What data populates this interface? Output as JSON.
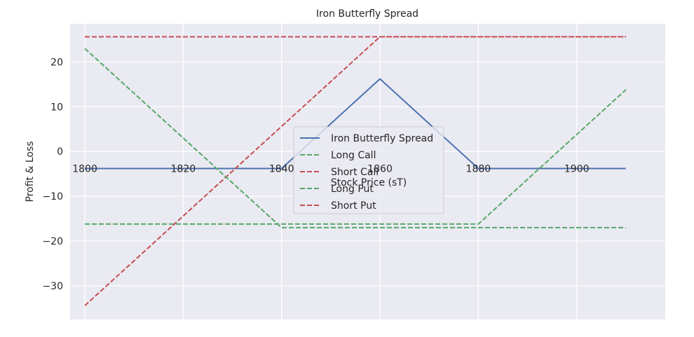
{
  "chart_data": {
    "type": "line",
    "title": "Iron Butterfly Spread",
    "xlabel": "Stock Price (sT)",
    "ylabel": "Profit & Loss",
    "xlim": [
      1797,
      1918
    ],
    "ylim": [
      -37.5,
      28.5
    ],
    "xticks": [
      1800,
      1820,
      1840,
      1860,
      1880,
      1900
    ],
    "xtick_labels": [
      "1800",
      "1820",
      "1840",
      "1860",
      "1880",
      "1900"
    ],
    "yticks": [
      -30,
      -20,
      -10,
      0,
      10,
      20
    ],
    "ytick_labels": [
      "−30",
      "−20",
      "−10",
      "0",
      "10",
      "20"
    ],
    "grid": true,
    "legend_position": "center",
    "background": "#eaeaf2",
    "series": [
      {
        "name": "Iron Butterfly Spread",
        "color": "#4c72b0",
        "dash": "solid",
        "x": [
          1800,
          1840,
          1860,
          1880,
          1910
        ],
        "y": [
          -3.8,
          -3.8,
          16.2,
          -3.8,
          -3.8
        ]
      },
      {
        "name": "Long Call",
        "color": "#55a868",
        "dash": "dashed",
        "x": [
          1800,
          1880,
          1910
        ],
        "y": [
          -16.2,
          -16.2,
          13.8
        ]
      },
      {
        "name": "Short Call",
        "color": "#c44e52",
        "dash": "dashed",
        "x": [
          1800,
          1860,
          1910
        ],
        "y": [
          -34.4,
          25.6,
          25.6
        ]
      },
      {
        "name": "Long Put",
        "color": "#55a868",
        "dash": "dashed",
        "x": [
          1800,
          1840,
          1910
        ],
        "y": [
          23.0,
          -17.0,
          -17.0
        ]
      },
      {
        "name": "Short Put",
        "color": "#c44e52",
        "dash": "dashed",
        "x": [
          1800,
          1860,
          1910
        ],
        "y": [
          25.6,
          25.6,
          25.6
        ]
      }
    ]
  }
}
